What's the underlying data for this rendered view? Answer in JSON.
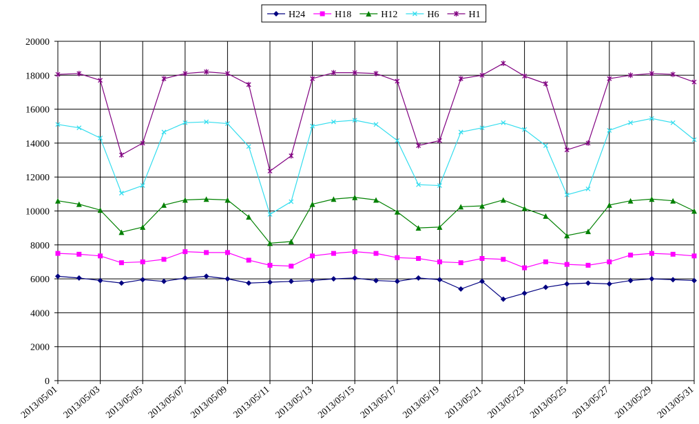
{
  "chart_data": {
    "type": "line",
    "categories": [
      "2013/05/01",
      null,
      "2013/05/03",
      null,
      "2013/05/05",
      null,
      "2013/05/07",
      null,
      "2013/05/09",
      null,
      "2013/05/11",
      null,
      "2013/05/13",
      null,
      "2013/05/15",
      null,
      "2013/05/17",
      null,
      "2013/05/19",
      null,
      "2013/05/21",
      null,
      "2013/05/23",
      null,
      "2013/05/25",
      null,
      "2013/05/27",
      null,
      "2013/05/29",
      null,
      "2013/05/31"
    ],
    "series": [
      {
        "name": "H24",
        "color": "#000080",
        "marker": "diamond",
        "values": [
          6150,
          6050,
          5900,
          5750,
          5950,
          5850,
          6050,
          6150,
          6000,
          5750,
          5800,
          5850,
          5900,
          6000,
          6050,
          5900,
          5850,
          6050,
          5950,
          5400,
          5850,
          4800,
          5150,
          5500,
          5700,
          5750,
          5700,
          5900,
          6000,
          5950,
          5900
        ]
      },
      {
        "name": "H18",
        "color": "#ff00ff",
        "marker": "square",
        "values": [
          7500,
          7450,
          7350,
          6950,
          7000,
          7150,
          7600,
          7550,
          7550,
          7100,
          6800,
          6750,
          7350,
          7500,
          7600,
          7500,
          7250,
          7200,
          7000,
          6950,
          7200,
          7150,
          6650,
          7000,
          6850,
          6800,
          7000,
          7400,
          7500,
          7450,
          7350
        ]
      },
      {
        "name": "H12",
        "color": "#008000",
        "marker": "triangle",
        "values": [
          10600,
          10400,
          10050,
          8750,
          9050,
          10350,
          10650,
          10700,
          10650,
          9650,
          8100,
          8200,
          10400,
          10700,
          10800,
          10650,
          9950,
          9000,
          9050,
          10250,
          10300,
          10650,
          10150,
          9700,
          8550,
          8800,
          10350,
          10600,
          10700,
          10600,
          10000
        ]
      },
      {
        "name": "H6",
        "color": "#33ddee",
        "marker": "x",
        "values": [
          15100,
          14900,
          14300,
          11050,
          11500,
          14650,
          15200,
          15250,
          15150,
          13800,
          9800,
          10550,
          15000,
          15250,
          15350,
          15100,
          14150,
          11550,
          11500,
          14650,
          14900,
          15200,
          14800,
          13850,
          10950,
          11300,
          14750,
          15200,
          15450,
          15200,
          14200
        ]
      },
      {
        "name": "H1",
        "color": "#800080",
        "marker": "star",
        "values": [
          18050,
          18100,
          17700,
          13300,
          14000,
          17800,
          18100,
          18200,
          18100,
          17450,
          12350,
          13250,
          17800,
          18150,
          18150,
          18100,
          17650,
          13850,
          14150,
          17800,
          18000,
          18700,
          17950,
          17500,
          13600,
          14000,
          17800,
          18000,
          18100,
          18050,
          17600
        ]
      }
    ],
    "ylim": [
      0,
      20000
    ],
    "yticks": [
      0,
      2000,
      4000,
      6000,
      8000,
      10000,
      12000,
      14000,
      16000,
      18000,
      20000
    ],
    "grid": true,
    "legend": "top"
  }
}
